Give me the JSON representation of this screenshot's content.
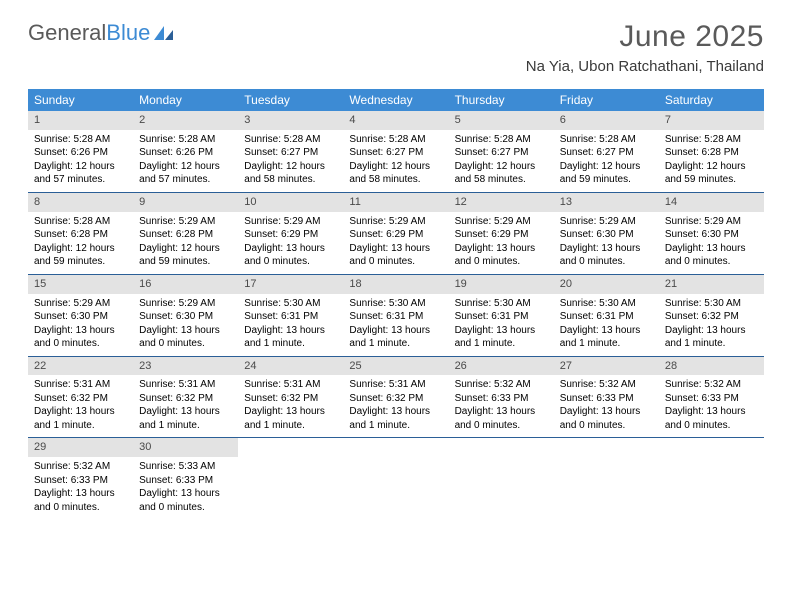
{
  "logo": {
    "part1": "General",
    "part2": "Blue"
  },
  "title": "June 2025",
  "location": "Na Yia, Ubon Ratchathani, Thailand",
  "colors": {
    "header_bg": "#3d8bd4",
    "header_text": "#ffffff",
    "daynum_bg": "#e3e3e3",
    "daynum_text": "#4a4a4a",
    "week_border": "#2b5f97",
    "title_text": "#5a5a5a",
    "logo_gray": "#5a5a5a",
    "logo_blue": "#3d8bd4"
  },
  "day_headers": [
    "Sunday",
    "Monday",
    "Tuesday",
    "Wednesday",
    "Thursday",
    "Friday",
    "Saturday"
  ],
  "days": [
    {
      "n": 1,
      "sr": "5:28 AM",
      "ss": "6:26 PM",
      "dl": "12 hours and 57 minutes."
    },
    {
      "n": 2,
      "sr": "5:28 AM",
      "ss": "6:26 PM",
      "dl": "12 hours and 57 minutes."
    },
    {
      "n": 3,
      "sr": "5:28 AM",
      "ss": "6:27 PM",
      "dl": "12 hours and 58 minutes."
    },
    {
      "n": 4,
      "sr": "5:28 AM",
      "ss": "6:27 PM",
      "dl": "12 hours and 58 minutes."
    },
    {
      "n": 5,
      "sr": "5:28 AM",
      "ss": "6:27 PM",
      "dl": "12 hours and 58 minutes."
    },
    {
      "n": 6,
      "sr": "5:28 AM",
      "ss": "6:27 PM",
      "dl": "12 hours and 59 minutes."
    },
    {
      "n": 7,
      "sr": "5:28 AM",
      "ss": "6:28 PM",
      "dl": "12 hours and 59 minutes."
    },
    {
      "n": 8,
      "sr": "5:28 AM",
      "ss": "6:28 PM",
      "dl": "12 hours and 59 minutes."
    },
    {
      "n": 9,
      "sr": "5:29 AM",
      "ss": "6:28 PM",
      "dl": "12 hours and 59 minutes."
    },
    {
      "n": 10,
      "sr": "5:29 AM",
      "ss": "6:29 PM",
      "dl": "13 hours and 0 minutes."
    },
    {
      "n": 11,
      "sr": "5:29 AM",
      "ss": "6:29 PM",
      "dl": "13 hours and 0 minutes."
    },
    {
      "n": 12,
      "sr": "5:29 AM",
      "ss": "6:29 PM",
      "dl": "13 hours and 0 minutes."
    },
    {
      "n": 13,
      "sr": "5:29 AM",
      "ss": "6:30 PM",
      "dl": "13 hours and 0 minutes."
    },
    {
      "n": 14,
      "sr": "5:29 AM",
      "ss": "6:30 PM",
      "dl": "13 hours and 0 minutes."
    },
    {
      "n": 15,
      "sr": "5:29 AM",
      "ss": "6:30 PM",
      "dl": "13 hours and 0 minutes."
    },
    {
      "n": 16,
      "sr": "5:29 AM",
      "ss": "6:30 PM",
      "dl": "13 hours and 0 minutes."
    },
    {
      "n": 17,
      "sr": "5:30 AM",
      "ss": "6:31 PM",
      "dl": "13 hours and 1 minute."
    },
    {
      "n": 18,
      "sr": "5:30 AM",
      "ss": "6:31 PM",
      "dl": "13 hours and 1 minute."
    },
    {
      "n": 19,
      "sr": "5:30 AM",
      "ss": "6:31 PM",
      "dl": "13 hours and 1 minute."
    },
    {
      "n": 20,
      "sr": "5:30 AM",
      "ss": "6:31 PM",
      "dl": "13 hours and 1 minute."
    },
    {
      "n": 21,
      "sr": "5:30 AM",
      "ss": "6:32 PM",
      "dl": "13 hours and 1 minute."
    },
    {
      "n": 22,
      "sr": "5:31 AM",
      "ss": "6:32 PM",
      "dl": "13 hours and 1 minute."
    },
    {
      "n": 23,
      "sr": "5:31 AM",
      "ss": "6:32 PM",
      "dl": "13 hours and 1 minute."
    },
    {
      "n": 24,
      "sr": "5:31 AM",
      "ss": "6:32 PM",
      "dl": "13 hours and 1 minute."
    },
    {
      "n": 25,
      "sr": "5:31 AM",
      "ss": "6:32 PM",
      "dl": "13 hours and 1 minute."
    },
    {
      "n": 26,
      "sr": "5:32 AM",
      "ss": "6:33 PM",
      "dl": "13 hours and 0 minutes."
    },
    {
      "n": 27,
      "sr": "5:32 AM",
      "ss": "6:33 PM",
      "dl": "13 hours and 0 minutes."
    },
    {
      "n": 28,
      "sr": "5:32 AM",
      "ss": "6:33 PM",
      "dl": "13 hours and 0 minutes."
    },
    {
      "n": 29,
      "sr": "5:32 AM",
      "ss": "6:33 PM",
      "dl": "13 hours and 0 minutes."
    },
    {
      "n": 30,
      "sr": "5:33 AM",
      "ss": "6:33 PM",
      "dl": "13 hours and 0 minutes."
    }
  ],
  "labels": {
    "sunrise": "Sunrise:",
    "sunset": "Sunset:",
    "daylight": "Daylight:"
  },
  "layout": {
    "first_day_offset": 0,
    "total_cells": 35
  }
}
